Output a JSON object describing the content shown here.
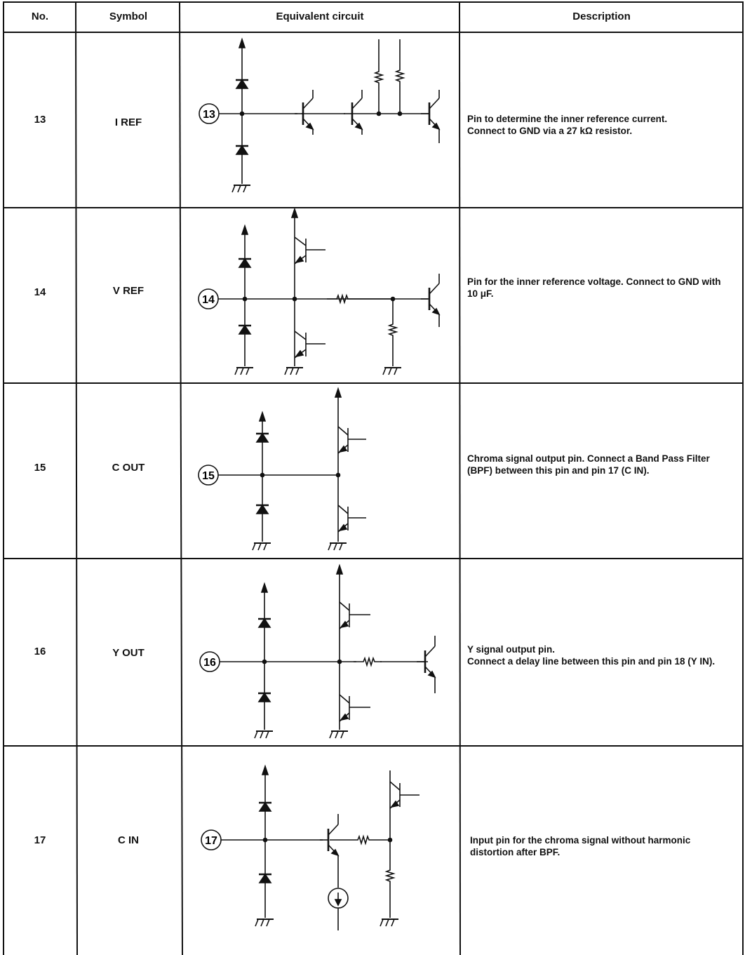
{
  "headers": {
    "no": "No.",
    "symbol": "Symbol",
    "circuit": "Equivalent circuit",
    "description": "Description"
  },
  "rows": [
    {
      "no": "13",
      "symbol": "I REF",
      "pin_label": "13",
      "description": "Pin to determine the inner reference current.\nConnect to GND via a 27 kΩ resistor."
    },
    {
      "no": "14",
      "symbol": "V REF",
      "pin_label": "14",
      "description": "Pin for the inner reference voltage. Connect to GND with 10 μF."
    },
    {
      "no": "15",
      "symbol": "C OUT",
      "pin_label": "15",
      "description": "Chroma signal output pin. Connect a Band Pass Filter (BPF) between this pin and pin 17 (C IN)."
    },
    {
      "no": "16",
      "symbol": "Y OUT",
      "pin_label": "16",
      "description": "Y signal output pin.\nConnect a delay line between this pin and pin 18 (Y IN)."
    },
    {
      "no": "17",
      "symbol": "C IN",
      "pin_label": "17",
      "description": "Input pin for the chroma signal without harmonic distortion after BPF."
    }
  ]
}
